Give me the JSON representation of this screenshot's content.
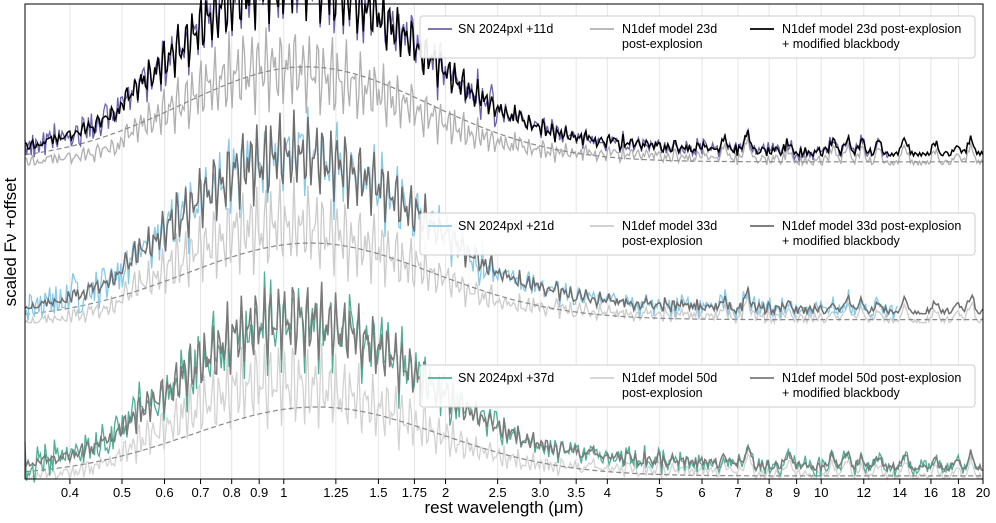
{
  "chart_data": {
    "type": "line",
    "xlabel": "rest wavelength (μm)",
    "ylabel": "scaled Fν +offset",
    "xscale": "log",
    "xlim": [
      0.33,
      20
    ],
    "xticks": [
      {
        "value": 0.4,
        "label": "0.4"
      },
      {
        "value": 0.5,
        "label": "0.5"
      },
      {
        "value": 0.6,
        "label": "0.6"
      },
      {
        "value": 0.7,
        "label": "0.7"
      },
      {
        "value": 0.8,
        "label": "0.8"
      },
      {
        "value": 0.9,
        "label": "0.9"
      },
      {
        "value": 1,
        "label": "1"
      },
      {
        "value": 1.25,
        "label": "1.25"
      },
      {
        "value": 1.5,
        "label": "1.5"
      },
      {
        "value": 1.75,
        "label": "1.75"
      },
      {
        "value": 2,
        "label": "2"
      },
      {
        "value": 2.5,
        "label": "2.5"
      },
      {
        "value": 3,
        "label": "3.0"
      },
      {
        "value": 3.5,
        "label": "3.5"
      },
      {
        "value": 4,
        "label": "4"
      },
      {
        "value": 5,
        "label": "5"
      },
      {
        "value": 6,
        "label": "6"
      },
      {
        "value": 7,
        "label": "7"
      },
      {
        "value": 8,
        "label": "8"
      },
      {
        "value": 9,
        "label": "9"
      },
      {
        "value": 10,
        "label": "10"
      },
      {
        "value": 12,
        "label": "12"
      },
      {
        "value": 14,
        "label": "14"
      },
      {
        "value": 16,
        "label": "16"
      },
      {
        "value": 18,
        "label": "18"
      },
      {
        "value": 20,
        "label": "20"
      }
    ],
    "ylim": [
      0,
      3.1
    ],
    "grid": "vertical",
    "panels": [
      {
        "offset": 2.05,
        "observed": {
          "name": "SN 2024pxl +11d",
          "color": "#6b64ad",
          "x_range": [
            0.33,
            13.4
          ],
          "noise": 0.09,
          "seed": 11
        },
        "model": {
          "name": "N1def model 23d post-explosion",
          "color": "#b0b0b0"
        },
        "model_bb": {
          "name": "N1def model 23d post-explosion + modified blackbody",
          "color": "#000000"
        },
        "blackbody": {
          "amplitude": 0.62,
          "peak_um": 1.1
        },
        "legend_labels": [
          "SN 2024pxl +11d",
          "N1def model 23d post-explosion",
          "N1def model 23d post-explosion + modified blackbody"
        ],
        "legend_position": "top-right"
      },
      {
        "offset": 1.02,
        "observed": {
          "name": "SN 2024pxl +21d",
          "color": "#87c9e6",
          "x_range": [
            0.33,
            13.9
          ],
          "noise": 0.12,
          "seed": 21
        },
        "model": {
          "name": "N1def model 33d post-explosion",
          "color": "#cccccc"
        },
        "model_bb": {
          "name": "N1def model 33d post-explosion + modified blackbody",
          "color": "#6e6e6e"
        },
        "blackbody": {
          "amplitude": 0.5,
          "peak_um": 1.12
        },
        "legend_labels": [
          "SN 2024pxl +21d",
          "N1def model 33d post-explosion",
          "N1def model 33d post-explosion + modified blackbody"
        ],
        "legend_position": "top-right"
      },
      {
        "offset": 0.0,
        "observed": {
          "name": "SN 2024pxl +37d",
          "color": "#4fae95",
          "x_range": [
            0.33,
            20
          ],
          "noise": 0.12,
          "seed": 37
        },
        "model": {
          "name": "N1def model 50d post-explosion",
          "color": "#d3d3d3"
        },
        "model_bb": {
          "name": "N1def model 50d post-explosion + modified blackbody",
          "color": "#7a7a7a"
        },
        "blackbody": {
          "amplitude": 0.45,
          "peak_um": 1.15
        },
        "legend_labels": [
          "SN 2024pxl +37d",
          "N1def model 50d post-explosion",
          "N1def model 50d post-explosion + modified blackbody"
        ],
        "legend_position": "top-right"
      }
    ],
    "mid_ir_emission_lines_um": [
      6.6,
      7.3,
      8.7,
      10.5,
      11.2,
      11.9,
      12.8,
      14.3,
      16.3,
      17.9,
      19.0
    ]
  }
}
